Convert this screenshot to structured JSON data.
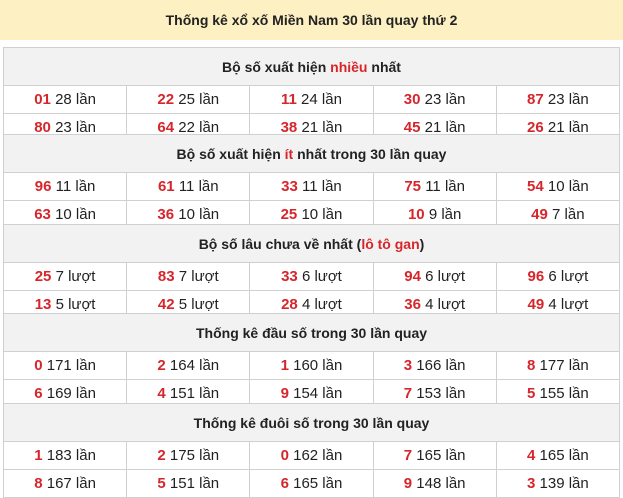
{
  "title": "Thống kê xổ xố Miền Nam 30 lần quay thứ 2",
  "accent": "#d6262b",
  "tables": [
    {
      "header": {
        "pre": "Bộ số xuất hiện ",
        "hl": "nhiều",
        "post": " nhất"
      },
      "rows": [
        [
          [
            "01",
            "28 lần"
          ],
          [
            "22",
            "25 lần"
          ],
          [
            "11",
            "24 lần"
          ],
          [
            "30",
            "23 lần"
          ],
          [
            "87",
            "23 lần"
          ]
        ],
        [
          [
            "80",
            "23 lần"
          ],
          [
            "64",
            "22 lần"
          ],
          [
            "38",
            "21 lần"
          ],
          [
            "45",
            "21 lần"
          ],
          [
            "26",
            "21 lần"
          ]
        ]
      ]
    },
    {
      "header": {
        "pre": "Bộ số xuất hiện ",
        "hl": "ít",
        "post": " nhất trong 30 lần quay"
      },
      "rows": [
        [
          [
            "96",
            "11 lần"
          ],
          [
            "61",
            "11 lần"
          ],
          [
            "33",
            "11 lần"
          ],
          [
            "75",
            "11 lần"
          ],
          [
            "54",
            "10 lần"
          ]
        ],
        [
          [
            "63",
            "10 lần"
          ],
          [
            "36",
            "10 lần"
          ],
          [
            "25",
            "10 lần"
          ],
          [
            "10",
            "9 lần"
          ],
          [
            "49",
            "7 lần"
          ]
        ]
      ]
    },
    {
      "header": {
        "pre": "Bộ số lâu chưa về nhất (",
        "hl": "lô tô gan",
        "post": ")"
      },
      "rows": [
        [
          [
            "25",
            "7 lượt"
          ],
          [
            "83",
            "7 lượt"
          ],
          [
            "33",
            "6 lượt"
          ],
          [
            "94",
            "6 lượt"
          ],
          [
            "96",
            "6 lượt"
          ]
        ],
        [
          [
            "13",
            "5 lượt"
          ],
          [
            "42",
            "5 lượt"
          ],
          [
            "28",
            "4 lượt"
          ],
          [
            "36",
            "4 lượt"
          ],
          [
            "49",
            "4 lượt"
          ]
        ]
      ]
    },
    {
      "header": {
        "pre": "Thống kê đầu số trong 30 lần quay",
        "hl": "",
        "post": ""
      },
      "rows": [
        [
          [
            "0",
            "171 lần"
          ],
          [
            "2",
            "164 lần"
          ],
          [
            "1",
            "160 lần"
          ],
          [
            "3",
            "166 lần"
          ],
          [
            "8",
            "177 lần"
          ]
        ],
        [
          [
            "6",
            "169 lần"
          ],
          [
            "4",
            "151 lần"
          ],
          [
            "9",
            "154 lần"
          ],
          [
            "7",
            "153 lần"
          ],
          [
            "5",
            "155 lần"
          ]
        ]
      ]
    },
    {
      "header": {
        "pre": "Thống kê đuôi số trong 30 lần quay",
        "hl": "",
        "post": ""
      },
      "rows": [
        [
          [
            "1",
            "183 lần"
          ],
          [
            "2",
            "175 lần"
          ],
          [
            "0",
            "162 lần"
          ],
          [
            "7",
            "165 lần"
          ],
          [
            "4",
            "165 lần"
          ]
        ],
        [
          [
            "8",
            "167 lần"
          ],
          [
            "5",
            "151 lần"
          ],
          [
            "6",
            "165 lần"
          ],
          [
            "9",
            "148 lần"
          ],
          [
            "3",
            "139 lần"
          ]
        ]
      ]
    }
  ]
}
